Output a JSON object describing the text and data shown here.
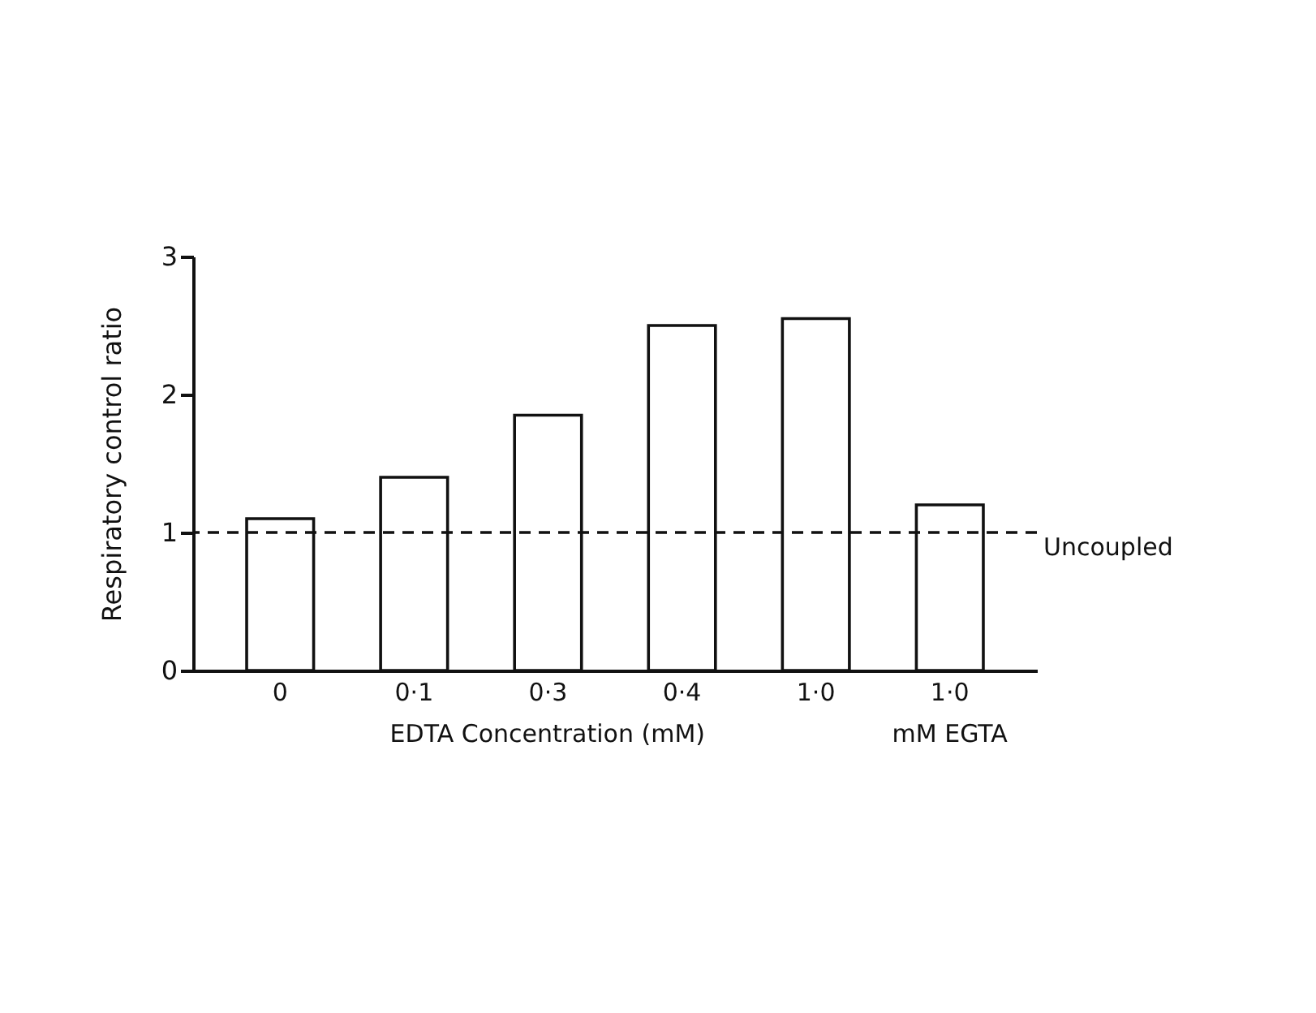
{
  "chart_data": {
    "type": "bar",
    "ylabel": "Respiratory control ratio",
    "xlabel": "EDTA  Concentration (mM)",
    "categories": [
      "0",
      "0·1",
      "0·3",
      "0·4",
      "1·0",
      "1·0"
    ],
    "values": [
      1.1,
      1.4,
      1.85,
      2.5,
      2.55,
      1.2
    ],
    "color": "#ffffff",
    "ylim": [
      0,
      3
    ],
    "yticks": [
      0,
      1,
      2,
      3
    ],
    "grid": false,
    "ref_lines": [
      {
        "axis": "y",
        "value": 1,
        "label": "Uncoupled",
        "line_style": "dashed",
        "color": "#111111"
      }
    ],
    "annotations": [
      "mM EGTA"
    ]
  }
}
